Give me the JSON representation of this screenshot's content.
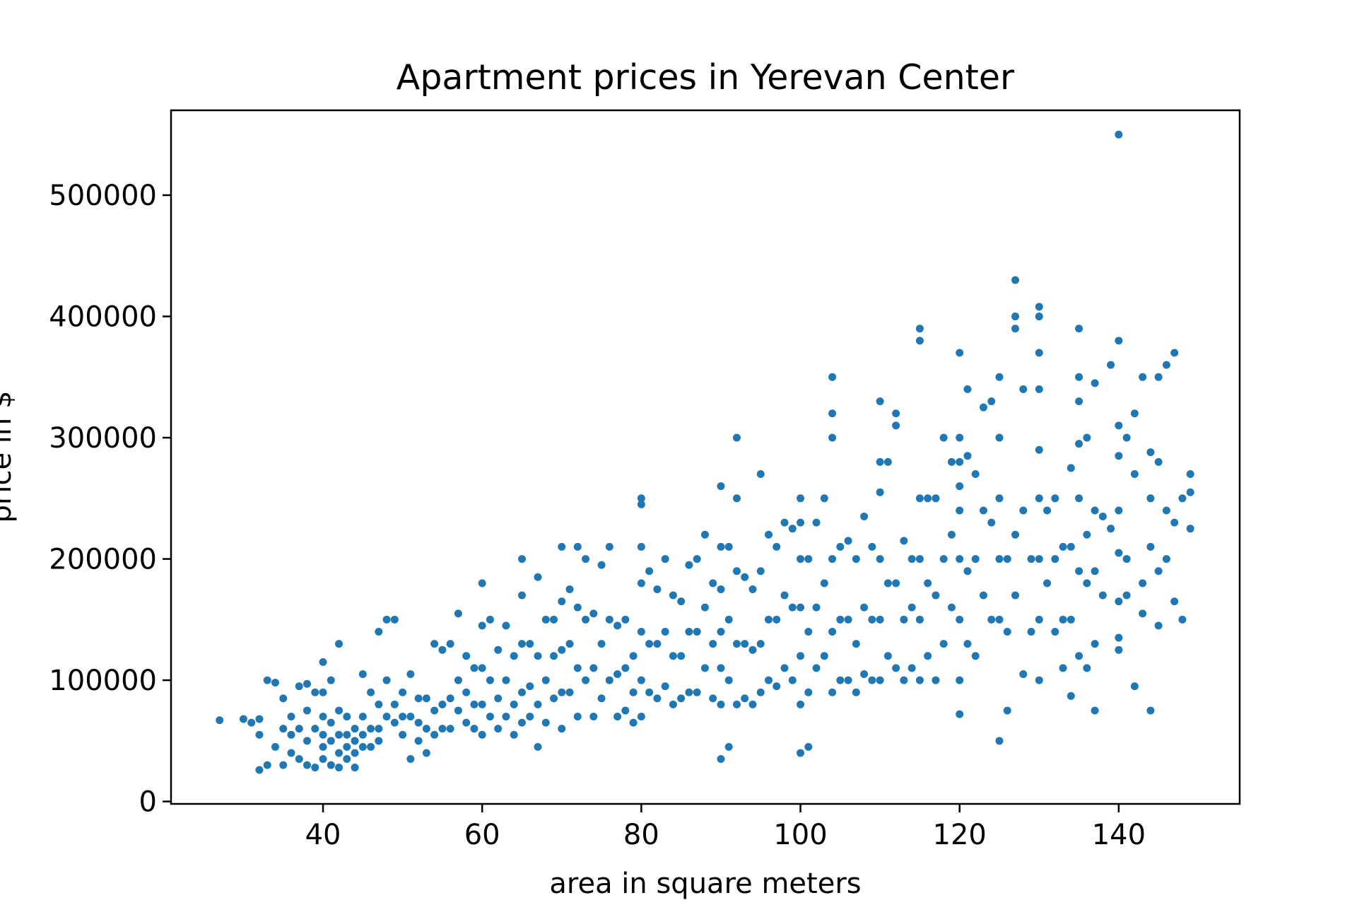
{
  "chart_data": {
    "type": "scatter",
    "title": "Apartment prices in Yerevan Center",
    "xlabel": "area in square meters",
    "ylabel": "price in $",
    "xlim": [
      20.9,
      155.2
    ],
    "ylim": [
      -2000,
      570000
    ],
    "xticks": [
      40,
      60,
      80,
      100,
      120,
      140
    ],
    "xtick_labels": [
      "40",
      "60",
      "80",
      "100",
      "120",
      "140"
    ],
    "yticks": [
      0,
      100000,
      200000,
      300000,
      400000,
      500000
    ],
    "ytick_labels": [
      "0",
      "100000",
      "200000",
      "300000",
      "400000",
      "500000"
    ],
    "grid": false,
    "legend": "none",
    "marker_color": "#1f77b4",
    "points": [
      [
        27,
        67000
      ],
      [
        30,
        68000
      ],
      [
        31,
        65000
      ],
      [
        32,
        68000
      ],
      [
        32,
        26000
      ],
      [
        32,
        55000
      ],
      [
        33,
        30000
      ],
      [
        33,
        100000
      ],
      [
        34,
        98000
      ],
      [
        34,
        45000
      ],
      [
        35,
        85000
      ],
      [
        35,
        60000
      ],
      [
        35,
        30000
      ],
      [
        36,
        70000
      ],
      [
        36,
        55000
      ],
      [
        36,
        40000
      ],
      [
        37,
        95000
      ],
      [
        37,
        60000
      ],
      [
        37,
        35000
      ],
      [
        38,
        97000
      ],
      [
        38,
        75000
      ],
      [
        38,
        50000
      ],
      [
        38,
        30000
      ],
      [
        39,
        90000
      ],
      [
        39,
        60000
      ],
      [
        39,
        28000
      ],
      [
        40,
        115000
      ],
      [
        40,
        90000
      ],
      [
        40,
        70000
      ],
      [
        40,
        55000
      ],
      [
        40,
        45000
      ],
      [
        40,
        35000
      ],
      [
        41,
        100000
      ],
      [
        41,
        65000
      ],
      [
        41,
        50000
      ],
      [
        41,
        30000
      ],
      [
        42,
        130000
      ],
      [
        42,
        75000
      ],
      [
        42,
        55000
      ],
      [
        42,
        40000
      ],
      [
        42,
        28000
      ],
      [
        43,
        70000
      ],
      [
        43,
        55000
      ],
      [
        43,
        45000
      ],
      [
        43,
        35000
      ],
      [
        44,
        60000
      ],
      [
        44,
        50000
      ],
      [
        44,
        40000
      ],
      [
        44,
        28000
      ],
      [
        45,
        105000
      ],
      [
        45,
        70000
      ],
      [
        45,
        55000
      ],
      [
        45,
        45000
      ],
      [
        46,
        90000
      ],
      [
        46,
        60000
      ],
      [
        46,
        45000
      ],
      [
        47,
        140000
      ],
      [
        47,
        80000
      ],
      [
        47,
        60000
      ],
      [
        47,
        50000
      ],
      [
        48,
        150000
      ],
      [
        48,
        100000
      ],
      [
        48,
        70000
      ],
      [
        49,
        150000
      ],
      [
        49,
        80000
      ],
      [
        49,
        65000
      ],
      [
        50,
        90000
      ],
      [
        50,
        70000
      ],
      [
        50,
        55000
      ],
      [
        51,
        105000
      ],
      [
        51,
        70000
      ],
      [
        51,
        35000
      ],
      [
        52,
        85000
      ],
      [
        52,
        65000
      ],
      [
        52,
        50000
      ],
      [
        53,
        85000
      ],
      [
        53,
        60000
      ],
      [
        53,
        40000
      ],
      [
        54,
        130000
      ],
      [
        54,
        75000
      ],
      [
        54,
        55000
      ],
      [
        55,
        125000
      ],
      [
        55,
        80000
      ],
      [
        55,
        60000
      ],
      [
        56,
        130000
      ],
      [
        56,
        85000
      ],
      [
        56,
        60000
      ],
      [
        57,
        155000
      ],
      [
        57,
        100000
      ],
      [
        57,
        75000
      ],
      [
        58,
        120000
      ],
      [
        58,
        90000
      ],
      [
        58,
        65000
      ],
      [
        59,
        110000
      ],
      [
        59,
        80000
      ],
      [
        59,
        60000
      ],
      [
        60,
        180000
      ],
      [
        60,
        145000
      ],
      [
        60,
        110000
      ],
      [
        60,
        80000
      ],
      [
        60,
        55000
      ],
      [
        61,
        150000
      ],
      [
        61,
        100000
      ],
      [
        61,
        70000
      ],
      [
        62,
        125000
      ],
      [
        62,
        85000
      ],
      [
        62,
        60000
      ],
      [
        63,
        145000
      ],
      [
        63,
        100000
      ],
      [
        63,
        70000
      ],
      [
        64,
        120000
      ],
      [
        64,
        80000
      ],
      [
        64,
        55000
      ],
      [
        65,
        200000
      ],
      [
        65,
        170000
      ],
      [
        65,
        130000
      ],
      [
        65,
        90000
      ],
      [
        65,
        65000
      ],
      [
        66,
        130000
      ],
      [
        66,
        95000
      ],
      [
        66,
        70000
      ],
      [
        67,
        185000
      ],
      [
        67,
        120000
      ],
      [
        67,
        80000
      ],
      [
        67,
        45000
      ],
      [
        68,
        150000
      ],
      [
        68,
        100000
      ],
      [
        68,
        65000
      ],
      [
        69,
        150000
      ],
      [
        69,
        120000
      ],
      [
        69,
        85000
      ],
      [
        70,
        210000
      ],
      [
        70,
        165000
      ],
      [
        70,
        125000
      ],
      [
        70,
        90000
      ],
      [
        70,
        60000
      ],
      [
        71,
        175000
      ],
      [
        71,
        130000
      ],
      [
        71,
        90000
      ],
      [
        72,
        210000
      ],
      [
        72,
        160000
      ],
      [
        72,
        110000
      ],
      [
        72,
        70000
      ],
      [
        73,
        200000
      ],
      [
        73,
        150000
      ],
      [
        73,
        100000
      ],
      [
        74,
        155000
      ],
      [
        74,
        110000
      ],
      [
        74,
        70000
      ],
      [
        75,
        195000
      ],
      [
        75,
        130000
      ],
      [
        75,
        85000
      ],
      [
        76,
        210000
      ],
      [
        76,
        150000
      ],
      [
        76,
        100000
      ],
      [
        77,
        145000
      ],
      [
        77,
        105000
      ],
      [
        77,
        70000
      ],
      [
        78,
        150000
      ],
      [
        78,
        110000
      ],
      [
        78,
        75000
      ],
      [
        79,
        120000
      ],
      [
        79,
        90000
      ],
      [
        79,
        65000
      ],
      [
        80,
        250000
      ],
      [
        80,
        245000
      ],
      [
        80,
        210000
      ],
      [
        80,
        180000
      ],
      [
        80,
        140000
      ],
      [
        80,
        100000
      ],
      [
        80,
        70000
      ],
      [
        81,
        190000
      ],
      [
        81,
        130000
      ],
      [
        81,
        90000
      ],
      [
        82,
        175000
      ],
      [
        82,
        130000
      ],
      [
        82,
        85000
      ],
      [
        83,
        200000
      ],
      [
        83,
        140000
      ],
      [
        83,
        95000
      ],
      [
        84,
        170000
      ],
      [
        84,
        120000
      ],
      [
        84,
        80000
      ],
      [
        85,
        165000
      ],
      [
        85,
        120000
      ],
      [
        85,
        85000
      ],
      [
        86,
        195000
      ],
      [
        86,
        140000
      ],
      [
        86,
        90000
      ],
      [
        87,
        200000
      ],
      [
        87,
        140000
      ],
      [
        87,
        90000
      ],
      [
        88,
        220000
      ],
      [
        88,
        160000
      ],
      [
        88,
        110000
      ],
      [
        89,
        180000
      ],
      [
        89,
        130000
      ],
      [
        89,
        85000
      ],
      [
        90,
        260000
      ],
      [
        90,
        210000
      ],
      [
        90,
        175000
      ],
      [
        90,
        140000
      ],
      [
        90,
        110000
      ],
      [
        90,
        80000
      ],
      [
        90,
        35000
      ],
      [
        91,
        210000
      ],
      [
        91,
        150000
      ],
      [
        91,
        100000
      ],
      [
        91,
        45000
      ],
      [
        92,
        300000
      ],
      [
        92,
        250000
      ],
      [
        92,
        190000
      ],
      [
        92,
        130000
      ],
      [
        92,
        80000
      ],
      [
        93,
        185000
      ],
      [
        93,
        130000
      ],
      [
        93,
        85000
      ],
      [
        94,
        175000
      ],
      [
        94,
        125000
      ],
      [
        94,
        80000
      ],
      [
        95,
        270000
      ],
      [
        95,
        190000
      ],
      [
        95,
        130000
      ],
      [
        95,
        90000
      ],
      [
        96,
        220000
      ],
      [
        96,
        150000
      ],
      [
        96,
        100000
      ],
      [
        97,
        210000
      ],
      [
        97,
        150000
      ],
      [
        97,
        95000
      ],
      [
        98,
        230000
      ],
      [
        98,
        170000
      ],
      [
        98,
        110000
      ],
      [
        99,
        225000
      ],
      [
        99,
        160000
      ],
      [
        99,
        100000
      ],
      [
        100,
        250000
      ],
      [
        100,
        230000
      ],
      [
        100,
        200000
      ],
      [
        100,
        160000
      ],
      [
        100,
        120000
      ],
      [
        100,
        80000
      ],
      [
        100,
        40000
      ],
      [
        101,
        200000
      ],
      [
        101,
        140000
      ],
      [
        101,
        90000
      ],
      [
        101,
        45000
      ],
      [
        102,
        230000
      ],
      [
        102,
        160000
      ],
      [
        102,
        110000
      ],
      [
        103,
        250000
      ],
      [
        103,
        180000
      ],
      [
        103,
        120000
      ],
      [
        104,
        350000
      ],
      [
        104,
        320000
      ],
      [
        104,
        300000
      ],
      [
        104,
        200000
      ],
      [
        104,
        140000
      ],
      [
        104,
        90000
      ],
      [
        105,
        210000
      ],
      [
        105,
        150000
      ],
      [
        105,
        100000
      ],
      [
        106,
        215000
      ],
      [
        106,
        150000
      ],
      [
        106,
        100000
      ],
      [
        107,
        200000
      ],
      [
        107,
        130000
      ],
      [
        107,
        90000
      ],
      [
        108,
        235000
      ],
      [
        108,
        160000
      ],
      [
        108,
        105000
      ],
      [
        109,
        210000
      ],
      [
        109,
        150000
      ],
      [
        109,
        100000
      ],
      [
        110,
        330000
      ],
      [
        110,
        280000
      ],
      [
        110,
        255000
      ],
      [
        110,
        200000
      ],
      [
        110,
        150000
      ],
      [
        110,
        100000
      ],
      [
        111,
        280000
      ],
      [
        111,
        180000
      ],
      [
        111,
        120000
      ],
      [
        112,
        320000
      ],
      [
        112,
        310000
      ],
      [
        112,
        180000
      ],
      [
        112,
        110000
      ],
      [
        113,
        215000
      ],
      [
        113,
        150000
      ],
      [
        113,
        100000
      ],
      [
        114,
        200000
      ],
      [
        114,
        160000
      ],
      [
        114,
        110000
      ],
      [
        115,
        390000
      ],
      [
        115,
        380000
      ],
      [
        115,
        250000
      ],
      [
        115,
        200000
      ],
      [
        115,
        150000
      ],
      [
        115,
        100000
      ],
      [
        116,
        250000
      ],
      [
        116,
        180000
      ],
      [
        116,
        120000
      ],
      [
        117,
        250000
      ],
      [
        117,
        170000
      ],
      [
        117,
        100000
      ],
      [
        118,
        300000
      ],
      [
        118,
        200000
      ],
      [
        118,
        130000
      ],
      [
        119,
        280000
      ],
      [
        119,
        220000
      ],
      [
        119,
        160000
      ],
      [
        120,
        370000
      ],
      [
        120,
        300000
      ],
      [
        120,
        280000
      ],
      [
        120,
        260000
      ],
      [
        120,
        240000
      ],
      [
        120,
        200000
      ],
      [
        120,
        150000
      ],
      [
        120,
        100000
      ],
      [
        120,
        72000
      ],
      [
        121,
        340000
      ],
      [
        121,
        285000
      ],
      [
        121,
        190000
      ],
      [
        121,
        130000
      ],
      [
        122,
        270000
      ],
      [
        122,
        200000
      ],
      [
        122,
        120000
      ],
      [
        123,
        325000
      ],
      [
        123,
        240000
      ],
      [
        123,
        170000
      ],
      [
        124,
        330000
      ],
      [
        124,
        230000
      ],
      [
        124,
        150000
      ],
      [
        125,
        350000
      ],
      [
        125,
        300000
      ],
      [
        125,
        250000
      ],
      [
        125,
        200000
      ],
      [
        125,
        150000
      ],
      [
        125,
        50000
      ],
      [
        126,
        200000
      ],
      [
        126,
        140000
      ],
      [
        126,
        75000
      ],
      [
        127,
        430000
      ],
      [
        127,
        400000
      ],
      [
        127,
        390000
      ],
      [
        127,
        220000
      ],
      [
        127,
        170000
      ],
      [
        128,
        340000
      ],
      [
        128,
        240000
      ],
      [
        128,
        105000
      ],
      [
        129,
        200000
      ],
      [
        129,
        140000
      ],
      [
        130,
        408000
      ],
      [
        130,
        400000
      ],
      [
        130,
        370000
      ],
      [
        130,
        340000
      ],
      [
        130,
        290000
      ],
      [
        130,
        250000
      ],
      [
        130,
        200000
      ],
      [
        130,
        150000
      ],
      [
        130,
        100000
      ],
      [
        131,
        240000
      ],
      [
        131,
        180000
      ],
      [
        132,
        250000
      ],
      [
        132,
        200000
      ],
      [
        132,
        140000
      ],
      [
        133,
        210000
      ],
      [
        133,
        150000
      ],
      [
        133,
        110000
      ],
      [
        134,
        275000
      ],
      [
        134,
        210000
      ],
      [
        134,
        150000
      ],
      [
        134,
        87000
      ],
      [
        135,
        390000
      ],
      [
        135,
        350000
      ],
      [
        135,
        330000
      ],
      [
        135,
        295000
      ],
      [
        135,
        250000
      ],
      [
        135,
        190000
      ],
      [
        135,
        120000
      ],
      [
        136,
        300000
      ],
      [
        136,
        220000
      ],
      [
        136,
        180000
      ],
      [
        136,
        110000
      ],
      [
        137,
        345000
      ],
      [
        137,
        240000
      ],
      [
        137,
        190000
      ],
      [
        137,
        130000
      ],
      [
        137,
        75000
      ],
      [
        138,
        235000
      ],
      [
        138,
        170000
      ],
      [
        139,
        360000
      ],
      [
        139,
        225000
      ],
      [
        140,
        550000
      ],
      [
        140,
        380000
      ],
      [
        140,
        310000
      ],
      [
        140,
        285000
      ],
      [
        140,
        240000
      ],
      [
        140,
        205000
      ],
      [
        140,
        165000
      ],
      [
        140,
        135000
      ],
      [
        140,
        125000
      ],
      [
        141,
        300000
      ],
      [
        141,
        200000
      ],
      [
        141,
        170000
      ],
      [
        142,
        320000
      ],
      [
        142,
        270000
      ],
      [
        142,
        95000
      ],
      [
        143,
        350000
      ],
      [
        143,
        180000
      ],
      [
        143,
        155000
      ],
      [
        144,
        288000
      ],
      [
        144,
        250000
      ],
      [
        144,
        210000
      ],
      [
        144,
        75000
      ],
      [
        145,
        350000
      ],
      [
        145,
        280000
      ],
      [
        145,
        190000
      ],
      [
        145,
        145000
      ],
      [
        146,
        360000
      ],
      [
        146,
        240000
      ],
      [
        146,
        200000
      ],
      [
        147,
        370000
      ],
      [
        147,
        230000
      ],
      [
        147,
        165000
      ],
      [
        148,
        250000
      ],
      [
        148,
        150000
      ],
      [
        149,
        270000
      ],
      [
        149,
        255000
      ],
      [
        149,
        225000
      ]
    ]
  }
}
